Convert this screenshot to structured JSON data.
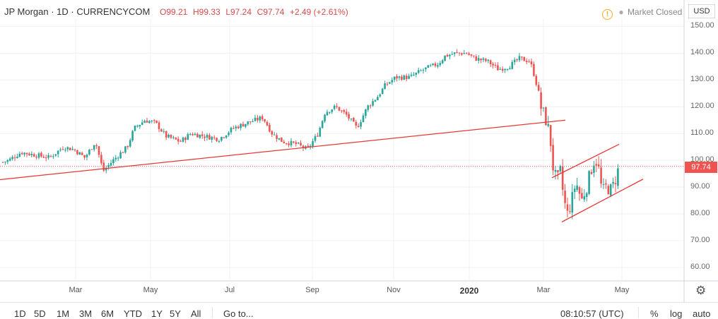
{
  "header": {
    "symbol": "JP Morgan · 1D · CURRENCYCOM",
    "open_label": "O",
    "open": "99.21",
    "high_label": "H",
    "high": "99.33",
    "low_label": "L",
    "low": "97.24",
    "close_label": "C",
    "close": "97.74",
    "change": "+2.49 (+2.61%)",
    "market_status": "Market Closed",
    "currency": "USD"
  },
  "colors": {
    "up": "#26a69a",
    "down": "#ef5350",
    "trendline": "#e53935",
    "grid": "#eef0f3"
  },
  "chart_data": {
    "type": "candlestick",
    "yaxis": {
      "min": 55,
      "max": 153,
      "ticks": [
        "150.00",
        "140.00",
        "130.00",
        "120.00",
        "110.00",
        "100.00",
        "90.00",
        "80.00",
        "70.00",
        "60.00"
      ],
      "position": "right"
    },
    "xaxis": {
      "labels": [
        "Mar",
        "May",
        "Jul",
        "Sep",
        "Nov",
        "2020",
        "Mar",
        "May"
      ]
    },
    "last_price_label": "97.74",
    "last_price": 97.74,
    "series": [
      {
        "name": "price",
        "points": [
          [
            0,
            99
          ],
          [
            12,
            100
          ],
          [
            30,
            103
          ],
          [
            50,
            102
          ],
          [
            70,
            101
          ],
          [
            90,
            105
          ],
          [
            105,
            104
          ],
          [
            120,
            101
          ],
          [
            135,
            107
          ],
          [
            146,
            96
          ],
          [
            160,
            100
          ],
          [
            180,
            105
          ],
          [
            190,
            112
          ],
          [
            205,
            115
          ],
          [
            220,
            114
          ],
          [
            235,
            109
          ],
          [
            255,
            107
          ],
          [
            270,
            110
          ],
          [
            290,
            109
          ],
          [
            310,
            108
          ],
          [
            330,
            112
          ],
          [
            350,
            114
          ],
          [
            372,
            116
          ],
          [
            385,
            110
          ],
          [
            400,
            107
          ],
          [
            420,
            106
          ],
          [
            435,
            104
          ],
          [
            450,
            110
          ],
          [
            460,
            118
          ],
          [
            475,
            120
          ],
          [
            490,
            117
          ],
          [
            505,
            112
          ],
          [
            520,
            120
          ],
          [
            535,
            124
          ],
          [
            545,
            128
          ],
          [
            560,
            131
          ],
          [
            580,
            131
          ],
          [
            600,
            134
          ],
          [
            620,
            136
          ],
          [
            630,
            139
          ],
          [
            645,
            140
          ],
          [
            660,
            140
          ],
          [
            672,
            138
          ],
          [
            690,
            137
          ],
          [
            705,
            134
          ],
          [
            720,
            135
          ],
          [
            735,
            138
          ],
          [
            750,
            137
          ],
          [
            758,
            130
          ],
          [
            765,
            120
          ],
          [
            770,
            117
          ],
          [
            778,
            110
          ],
          [
            782,
            98
          ],
          [
            788,
            92
          ],
          [
            793,
            96
          ],
          [
            798,
            85
          ],
          [
            803,
            80
          ],
          [
            808,
            84
          ],
          [
            815,
            92
          ],
          [
            823,
            85
          ],
          [
            830,
            90
          ],
          [
            836,
            96
          ],
          [
            842,
            101
          ],
          [
            847,
            97
          ],
          [
            852,
            88
          ],
          [
            857,
            90
          ],
          [
            865,
            89
          ],
          [
            870,
            92
          ],
          [
            876,
            97.74
          ]
        ]
      }
    ],
    "trendlines": [
      {
        "from": [
          "pre-Feb 2019",
          92.8
        ],
        "to": [
          "early Mar 2020",
          115
        ]
      },
      {
        "from": [
          "Mar 2020",
          93.5
        ],
        "to": [
          "late Apr 2020",
          106
        ]
      },
      {
        "from": [
          "Mar 2020",
          77
        ],
        "to": [
          "May 2020",
          93
        ]
      }
    ],
    "reference_line": {
      "value": 97.74,
      "style": "dotted"
    }
  },
  "bottom_bar": {
    "ranges": [
      "1D",
      "5D",
      "1M",
      "3M",
      "6M",
      "YTD",
      "1Y",
      "5Y",
      "All"
    ],
    "goto": "Go to...",
    "time": "08:10:57 (UTC)",
    "percent": "%",
    "log": "log",
    "auto": "auto"
  }
}
